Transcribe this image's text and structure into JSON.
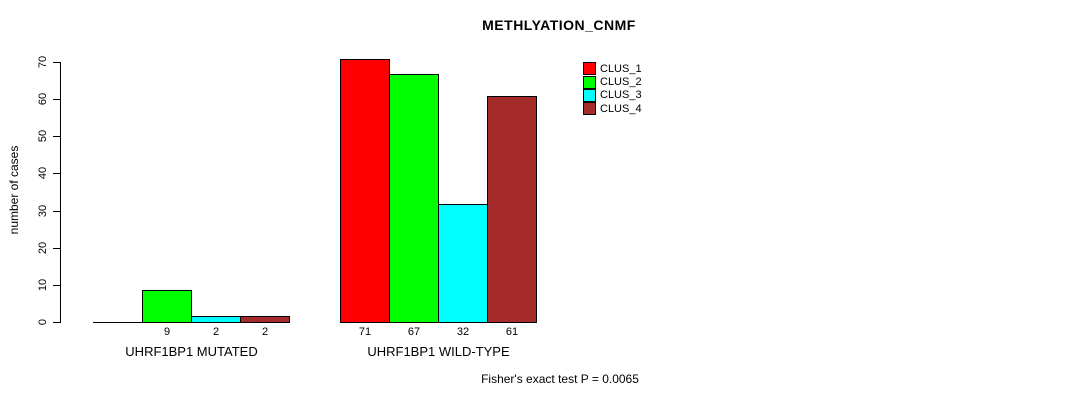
{
  "title": "METHLYATION_CNMF",
  "annotation": "Fisher's exact test P = 0.0065",
  "colors": {
    "clus_1": "#FF0000",
    "clus_2": "#00FF00",
    "clus_3": "#00FFFF",
    "clus_4": "#A52A2A",
    "axis": "#000000",
    "background": "#FFFFFF"
  },
  "legend": {
    "position": "right",
    "items": [
      {
        "label": "CLUS_1",
        "color": "#FF0000"
      },
      {
        "label": "CLUS_2",
        "color": "#00FF00"
      },
      {
        "label": "CLUS_3",
        "color": "#00FFFF"
      },
      {
        "label": "CLUS_4",
        "color": "#A52A2A"
      }
    ]
  },
  "chart_data": {
    "type": "bar",
    "title": "METHLYATION_CNMF",
    "xlabel": "",
    "ylabel": "number of cases",
    "ylim": [
      0,
      70
    ],
    "y_ticks": [
      0,
      10,
      20,
      30,
      40,
      50,
      60,
      70
    ],
    "grid": false,
    "legend_position": "right",
    "categories": [
      "UHRF1BP1 MUTATED",
      "UHRF1BP1 WILD-TYPE"
    ],
    "series": [
      {
        "name": "CLUS_1",
        "color": "#FF0000",
        "values": [
          0,
          71
        ]
      },
      {
        "name": "CLUS_2",
        "color": "#00FF00",
        "values": [
          9,
          67
        ]
      },
      {
        "name": "CLUS_3",
        "color": "#00FFFF",
        "values": [
          2,
          32
        ]
      },
      {
        "name": "CLUS_4",
        "color": "#A52A2A",
        "values": [
          2,
          61
        ]
      }
    ],
    "bar_value_labels": [
      [
        null,
        "9",
        "2",
        "2"
      ],
      [
        "71",
        "67",
        "32",
        "61"
      ]
    ],
    "annotation": "Fisher's exact test P = 0.0065"
  }
}
